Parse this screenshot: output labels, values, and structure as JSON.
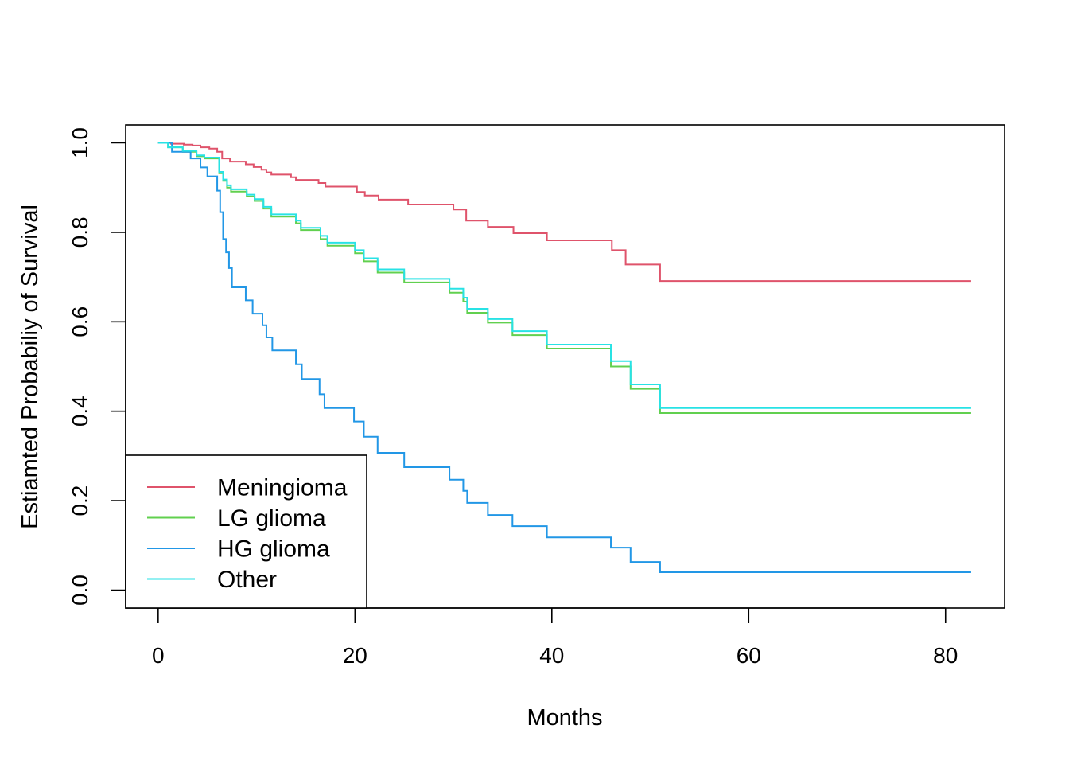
{
  "chart_data": {
    "type": "line",
    "title": "",
    "xlabel": "Months",
    "ylabel": "Estiamted Probabiliy of Survival",
    "xlim": [
      -3.3,
      86
    ],
    "ylim": [
      -0.04,
      1.04
    ],
    "xticks": [
      "0",
      "20",
      "40",
      "60",
      "80"
    ],
    "yticks": [
      "0.0",
      "0.2",
      "0.4",
      "0.6",
      "0.8",
      "1.0"
    ],
    "grid": false,
    "legend": {
      "position": "bottom-left",
      "entries": [
        "Meningioma",
        "LG glioma",
        "HG glioma",
        "Other"
      ]
    },
    "series": [
      {
        "name": "Meningioma",
        "color": "#DF536B",
        "x": [
          0,
          1.3,
          2.6,
          3.5,
          4.3,
          5.2,
          6,
          6.5,
          7.3,
          8.9,
          9.7,
          10.5,
          11,
          11.5,
          13.5,
          14,
          16.3,
          17,
          20.2,
          21,
          22.4,
          25.4,
          30,
          31.3,
          33.5,
          36.1,
          39.5,
          46.1,
          47.5,
          51,
          82.6
        ],
        "y": [
          1.0,
          0.998,
          0.996,
          0.994,
          0.99,
          0.987,
          0.98,
          0.965,
          0.958,
          0.952,
          0.946,
          0.94,
          0.934,
          0.929,
          0.923,
          0.917,
          0.91,
          0.902,
          0.89,
          0.882,
          0.873,
          0.862,
          0.851,
          0.826,
          0.812,
          0.798,
          0.782,
          0.76,
          0.728,
          0.691,
          0.691
        ]
      },
      {
        "name": "LG glioma",
        "color": "#61D04F",
        "x": [
          0,
          1,
          2.5,
          3.9,
          4.7,
          6.2,
          6.6,
          7,
          7.4,
          9,
          9.8,
          10.7,
          11.5,
          14,
          14.5,
          16.5,
          17.2,
          20,
          20.9,
          22.3,
          25,
          29.6,
          31,
          31.4,
          33.5,
          36,
          39.5,
          46,
          48,
          51,
          82.6
        ],
        "y": [
          1.0,
          0.99,
          0.98,
          0.97,
          0.965,
          0.932,
          0.915,
          0.9,
          0.891,
          0.88,
          0.87,
          0.853,
          0.835,
          0.82,
          0.805,
          0.785,
          0.77,
          0.753,
          0.735,
          0.71,
          0.688,
          0.665,
          0.645,
          0.62,
          0.598,
          0.57,
          0.54,
          0.5,
          0.45,
          0.396,
          0.396
        ]
      },
      {
        "name": "HG glioma",
        "color": "#2297E6",
        "x": [
          0,
          1.4,
          3.3,
          4.3,
          5,
          6,
          6.3,
          6.6,
          6.9,
          7.2,
          7.5,
          8.9,
          9.6,
          10.6,
          11,
          11.6,
          14,
          14.6,
          16.4,
          16.9,
          19.9,
          20.9,
          22.3,
          25,
          29.6,
          31,
          31.4,
          33.5,
          36,
          39.5,
          46,
          48,
          51,
          82.6
        ],
        "y": [
          1.0,
          0.98,
          0.965,
          0.945,
          0.925,
          0.893,
          0.845,
          0.785,
          0.755,
          0.72,
          0.677,
          0.648,
          0.618,
          0.592,
          0.565,
          0.536,
          0.505,
          0.472,
          0.438,
          0.407,
          0.377,
          0.343,
          0.307,
          0.275,
          0.247,
          0.222,
          0.195,
          0.168,
          0.143,
          0.118,
          0.095,
          0.063,
          0.04,
          0.04
        ]
      },
      {
        "name": "Other",
        "color": "#28E2E5",
        "x": [
          0,
          1,
          2.5,
          3.9,
          4.7,
          6.2,
          6.6,
          7,
          7.4,
          9,
          9.8,
          10.7,
          11.5,
          14,
          14.5,
          16.5,
          17.2,
          20,
          20.9,
          22.3,
          25,
          29.6,
          31,
          31.4,
          33.5,
          36,
          39.5,
          46,
          48,
          51,
          82.6
        ],
        "y": [
          1.0,
          0.99,
          0.982,
          0.972,
          0.967,
          0.935,
          0.918,
          0.905,
          0.896,
          0.884,
          0.874,
          0.857,
          0.84,
          0.826,
          0.81,
          0.792,
          0.777,
          0.76,
          0.742,
          0.717,
          0.696,
          0.674,
          0.654,
          0.629,
          0.606,
          0.579,
          0.549,
          0.512,
          0.46,
          0.407,
          0.407
        ]
      }
    ]
  }
}
